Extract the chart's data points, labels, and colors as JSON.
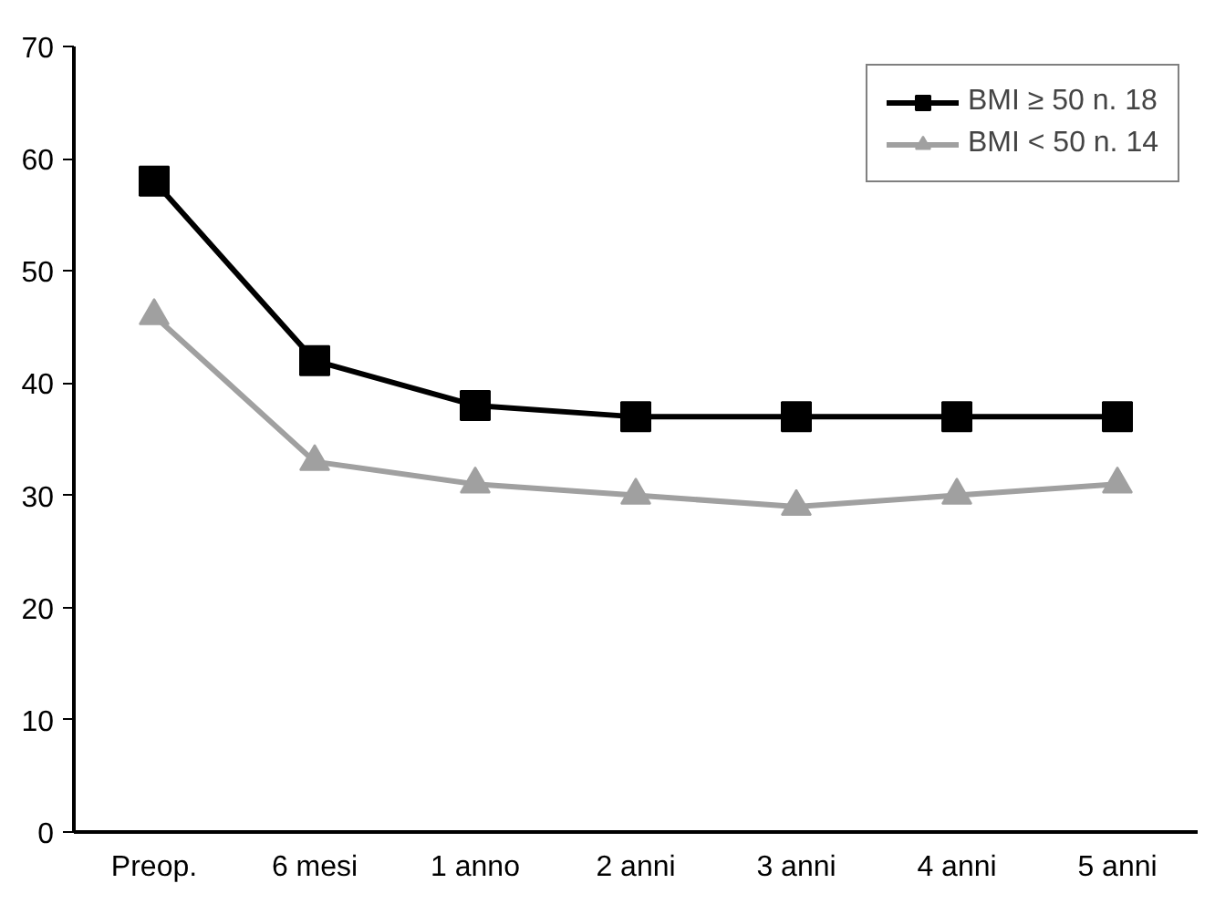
{
  "chart_data": {
    "type": "line",
    "categories": [
      "Preop.",
      "6 mesi",
      "1 anno",
      "2 anni",
      "3 anni",
      "4 anni",
      "5 anni"
    ],
    "series": [
      {
        "name": "BMI ≥ 50 n. 18",
        "color": "#000000",
        "marker": "square",
        "values": [
          58,
          42,
          38,
          37,
          37,
          37,
          37
        ]
      },
      {
        "name": "BMI < 50 n. 14",
        "color": "#a0a0a0",
        "marker": "triangle",
        "values": [
          46,
          33,
          31,
          30,
          29,
          30,
          31
        ]
      }
    ],
    "ylim": [
      0,
      70
    ],
    "yticks": [
      0,
      10,
      20,
      30,
      40,
      50,
      60,
      70
    ],
    "grid": false,
    "legend": "top right"
  }
}
